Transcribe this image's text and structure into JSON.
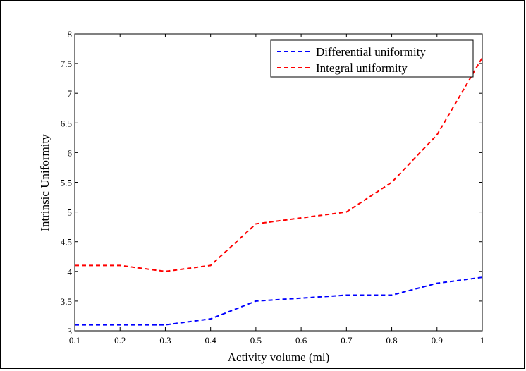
{
  "chart_data": {
    "type": "line",
    "title": "",
    "xlabel": "Activity volume (ml)",
    "ylabel": "Intrinsic Uniformity",
    "xlim": [
      0.1,
      1.0
    ],
    "ylim": [
      3,
      8
    ],
    "x_ticks": [
      0.1,
      0.2,
      0.3,
      0.4,
      0.5,
      0.6,
      0.7,
      0.8,
      0.9,
      1
    ],
    "x_tick_labels": [
      "0.1",
      "0.2",
      "0.3",
      "0.4",
      "0.5",
      "0.6",
      "0.7",
      "0.8",
      "0.9",
      "1"
    ],
    "y_ticks": [
      3,
      3.5,
      4,
      4.5,
      5,
      5.5,
      6,
      6.5,
      7,
      7.5,
      8
    ],
    "y_tick_labels": [
      "3",
      "3.5",
      "4",
      "4.5",
      "5",
      "5.5",
      "6",
      "6.5",
      "7",
      "7.5",
      "8"
    ],
    "grid": false,
    "legend_position": "top-right",
    "x": [
      0.1,
      0.2,
      0.3,
      0.4,
      0.5,
      0.6,
      0.7,
      0.8,
      0.9,
      1.0
    ],
    "series": [
      {
        "name": "Differential uniformity",
        "color": "#0000ff",
        "line_style": "dashed",
        "values": [
          3.1,
          3.1,
          3.1,
          3.2,
          3.5,
          3.55,
          3.6,
          3.6,
          3.8,
          3.9
        ]
      },
      {
        "name": "Integral uniformity",
        "color": "#ff0000",
        "line_style": "dashed",
        "values": [
          4.1,
          4.1,
          4.0,
          4.1,
          4.8,
          4.9,
          5.0,
          5.5,
          6.3,
          7.6
        ]
      }
    ]
  }
}
